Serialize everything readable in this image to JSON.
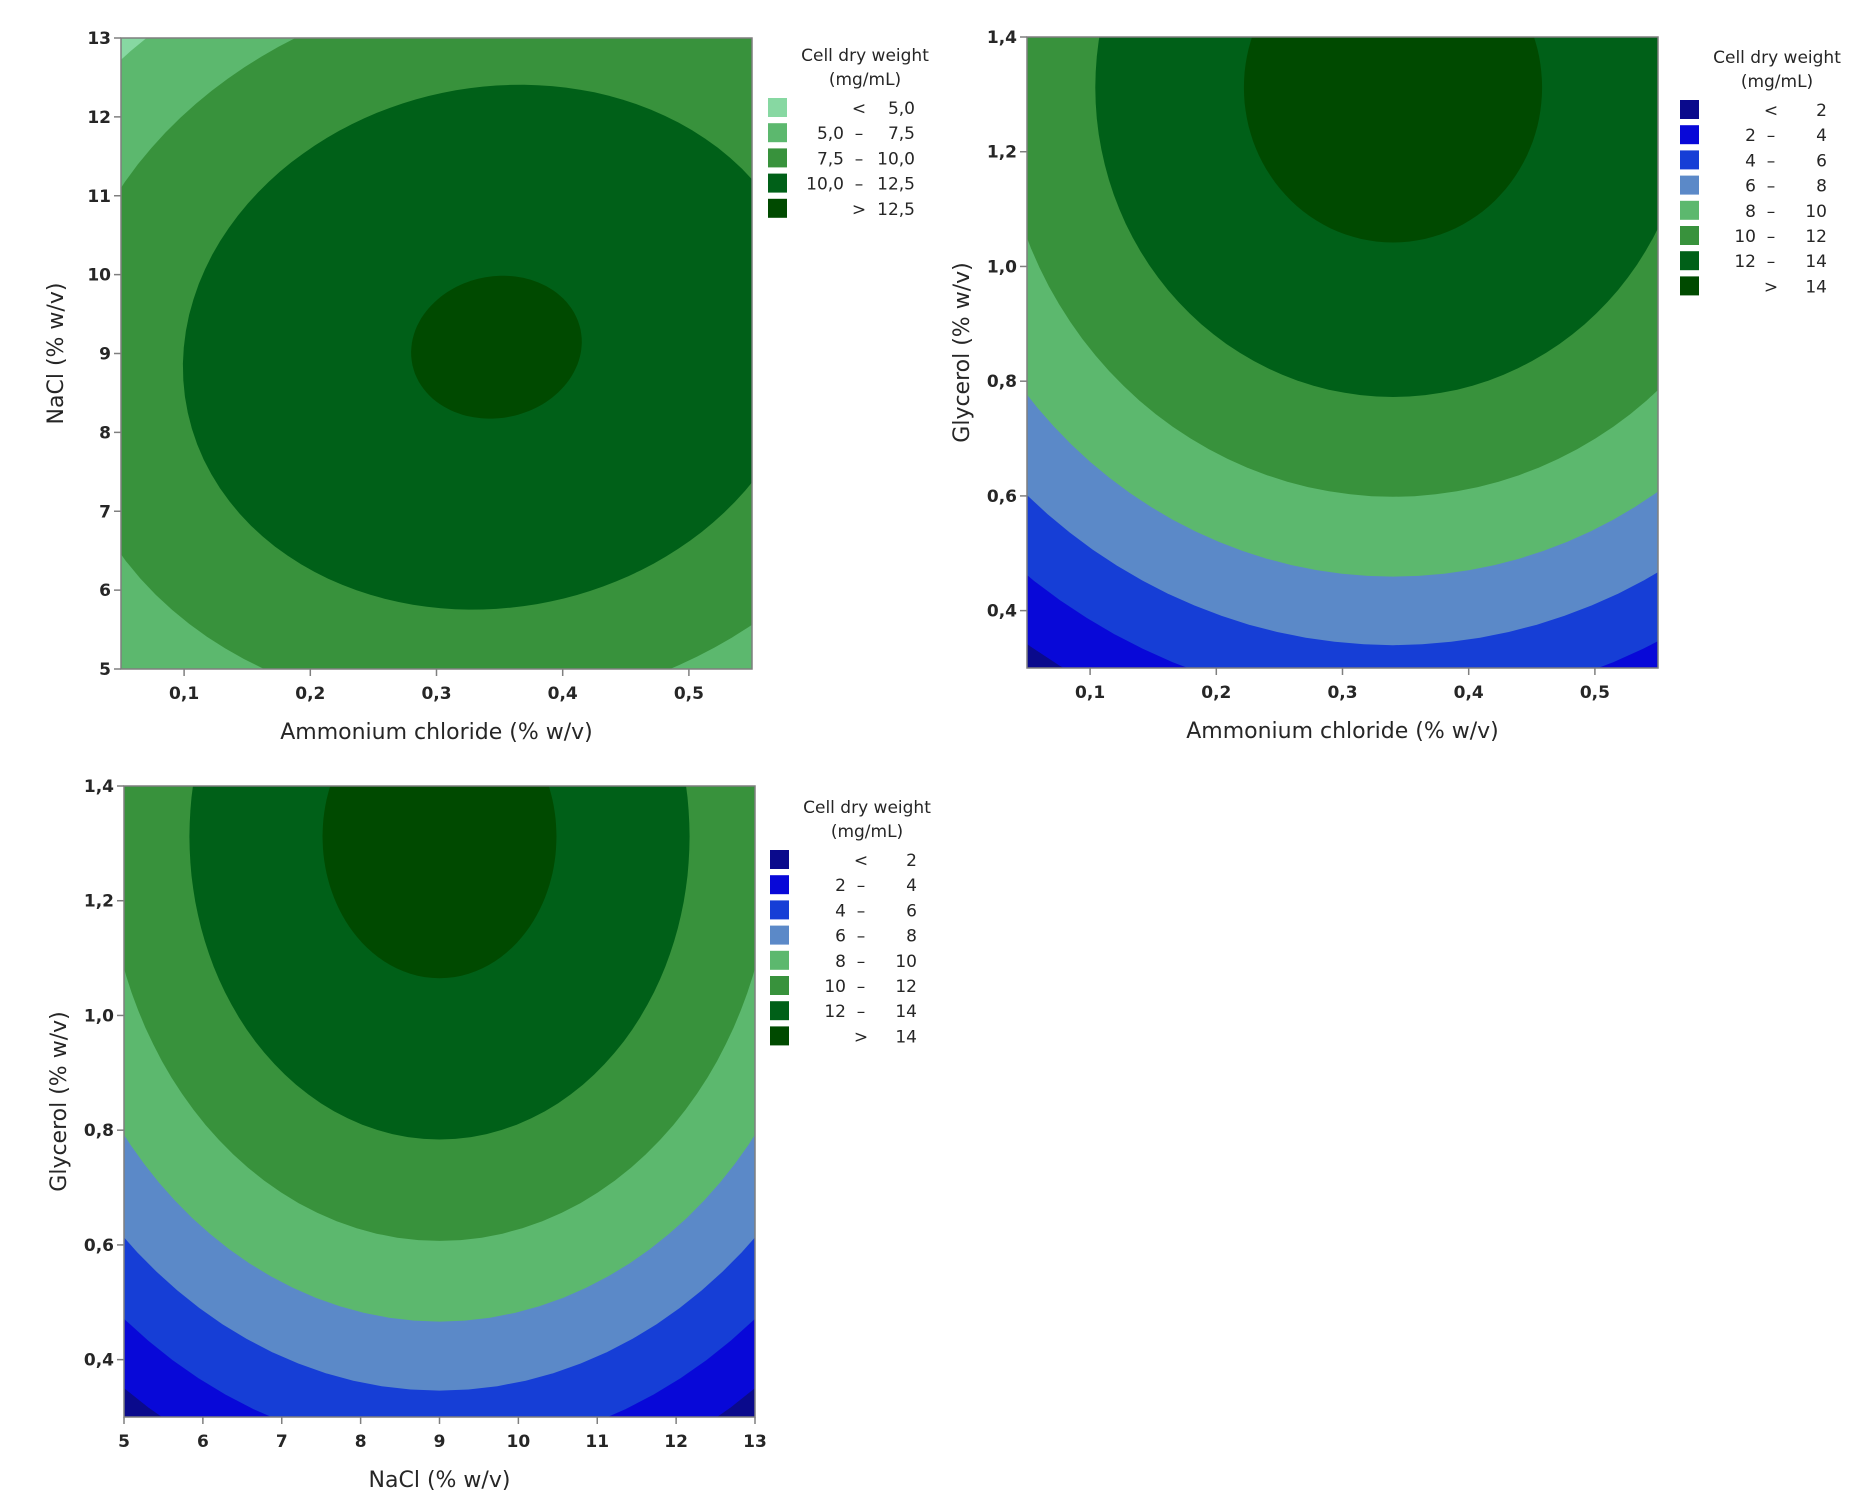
{
  "chart_data": [
    {
      "type": "heatmap",
      "subtype": "filled-contour",
      "title": "",
      "xlabel": "Ammonium chloride (% w/v)",
      "ylabel": "NaCl (% w/v)",
      "xlim": [
        0.05,
        0.55
      ],
      "ylim": [
        5,
        13
      ],
      "xticks": [
        0.1,
        0.2,
        0.3,
        0.4,
        0.5
      ],
      "xtick_labels": [
        "0,1",
        "0,2",
        "0,3",
        "0,4",
        "0,5"
      ],
      "yticks": [
        5,
        6,
        7,
        8,
        9,
        10,
        11,
        12,
        13
      ],
      "ytick_labels": [
        "5",
        "6",
        "7",
        "8",
        "9",
        "10",
        "11",
        "12",
        "13"
      ],
      "legend": {
        "title_line1": "Cell dry weight",
        "title_line2": "(mg/mL)",
        "placement": "right",
        "entries": [
          {
            "low": "",
            "sep": "<",
            "high": "5,0",
            "color": "#87d8a2"
          },
          {
            "low": "5,0",
            "sep": "–",
            "high": "7,5",
            "color": "#5cb86e"
          },
          {
            "low": "7,5",
            "sep": "–",
            "high": "10,0",
            "color": "#38923c"
          },
          {
            "low": "10,0",
            "sep": "–",
            "high": "12,5",
            "color": "#006018"
          },
          {
            "low": "",
            "sep": ">",
            "high": "12,5",
            "color": "#004a00"
          }
        ]
      },
      "levels": [
        5.0,
        7.5,
        10.0,
        12.5
      ],
      "surface": {
        "peak_x": 0.35,
        "peak_y": 9.1,
        "peak_value": 12.7
      }
    },
    {
      "type": "heatmap",
      "subtype": "filled-contour",
      "title": "",
      "xlabel": "Ammonium chloride (% w/v)",
      "ylabel": "Glycerol (% w/v)",
      "xlim": [
        0.05,
        0.55
      ],
      "ylim": [
        0.3,
        1.4
      ],
      "xticks": [
        0.1,
        0.2,
        0.3,
        0.4,
        0.5
      ],
      "xtick_labels": [
        "0,1",
        "0,2",
        "0,3",
        "0,4",
        "0,5"
      ],
      "yticks": [
        0.4,
        0.6,
        0.8,
        1.0,
        1.2,
        1.4
      ],
      "ytick_labels": [
        "0,4",
        "0,6",
        "0,8",
        "1,0",
        "1,2",
        "1,4"
      ],
      "legend": {
        "title_line1": "Cell dry weight",
        "title_line2": "(mg/mL)",
        "placement": "right",
        "entries": [
          {
            "low": "",
            "sep": "<",
            "high": "2",
            "color": "#0a0a8c"
          },
          {
            "low": "2",
            "sep": "–",
            "high": "4",
            "color": "#0808d8"
          },
          {
            "low": "4",
            "sep": "–",
            "high": "6",
            "color": "#163ed6"
          },
          {
            "low": "6",
            "sep": "–",
            "high": "8",
            "color": "#5b89c8"
          },
          {
            "low": "8",
            "sep": "–",
            "high": "10",
            "color": "#5cb86e"
          },
          {
            "low": "10",
            "sep": "–",
            "high": "12",
            "color": "#38923c"
          },
          {
            "low": "12",
            "sep": "–",
            "high": "14",
            "color": "#006018"
          },
          {
            "low": "",
            "sep": ">",
            "high": "14",
            "color": "#004a00"
          }
        ]
      },
      "levels": [
        2,
        4,
        6,
        8,
        10,
        12,
        14
      ],
      "surface": {
        "peak_x": 0.34,
        "peak_y": 1.31,
        "peak_value": 14.67
      }
    },
    {
      "type": "heatmap",
      "subtype": "filled-contour",
      "title": "",
      "xlabel": "NaCl (% w/v)",
      "ylabel": "Glycerol (% w/v)",
      "xlim": [
        5,
        13
      ],
      "ylim": [
        0.3,
        1.4
      ],
      "xticks": [
        5,
        6,
        7,
        8,
        9,
        10,
        11,
        12,
        13
      ],
      "xtick_labels": [
        "5",
        "6",
        "7",
        "8",
        "9",
        "10",
        "11",
        "12",
        "13"
      ],
      "yticks": [
        0.4,
        0.6,
        0.8,
        1.0,
        1.2,
        1.4
      ],
      "ytick_labels": [
        "0,4",
        "0,6",
        "0,8",
        "1,0",
        "1,2",
        "1,4"
      ],
      "legend": {
        "title_line1": "Cell dry weight",
        "title_line2": "(mg/mL)",
        "placement": "right",
        "entries": [
          {
            "low": "",
            "sep": "<",
            "high": "2",
            "color": "#0a0a8c"
          },
          {
            "low": "2",
            "sep": "–",
            "high": "4",
            "color": "#0808d8"
          },
          {
            "low": "4",
            "sep": "–",
            "high": "6",
            "color": "#163ed6"
          },
          {
            "low": "6",
            "sep": "–",
            "high": "8",
            "color": "#5b89c8"
          },
          {
            "low": "8",
            "sep": "–",
            "high": "10",
            "color": "#5cb86e"
          },
          {
            "low": "10",
            "sep": "–",
            "high": "12",
            "color": "#38923c"
          },
          {
            "low": "12",
            "sep": "–",
            "high": "14",
            "color": "#006018"
          },
          {
            "low": "",
            "sep": ">",
            "high": "14",
            "color": "#004a00"
          }
        ]
      },
      "levels": [
        2,
        4,
        6,
        8,
        10,
        12,
        14
      ],
      "surface": {
        "peak_x": 9.0,
        "peak_y": 1.31,
        "peak_value": 14.56
      }
    }
  ]
}
